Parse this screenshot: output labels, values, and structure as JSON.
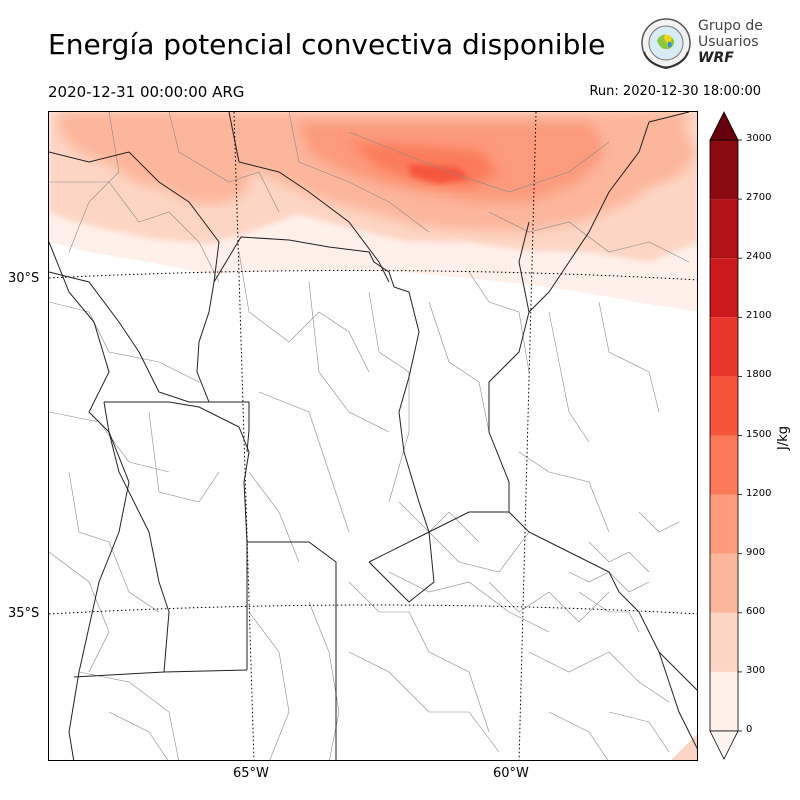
{
  "header": {
    "title": "Energía potencial convectiva disponible",
    "valid_time": "2020-12-31 00:00:00 ARG",
    "run_time": "Run: 2020-12-30 18:00:00"
  },
  "logo": {
    "line1": "Grupo de",
    "line2": "Usuarios",
    "line3": "WRF"
  },
  "map": {
    "lat_labels": [
      "30°S",
      "35°S"
    ],
    "lon_labels": [
      "65°W",
      "60°W"
    ]
  },
  "colorbar": {
    "units": "J/kg",
    "ticks": [
      "0",
      "300",
      "600",
      "900",
      "1200",
      "1500",
      "1800",
      "2100",
      "2400",
      "2700",
      "3000"
    ],
    "colors": [
      "#fff0ea",
      "#fdd5c4",
      "#fcb69b",
      "#fc9a7b",
      "#fb7a5a",
      "#f6553c",
      "#e8362a",
      "#cb1b1d",
      "#b01217",
      "#8c0b13"
    ],
    "under_color": "#fff5f0",
    "over_color": "#67000d"
  }
}
